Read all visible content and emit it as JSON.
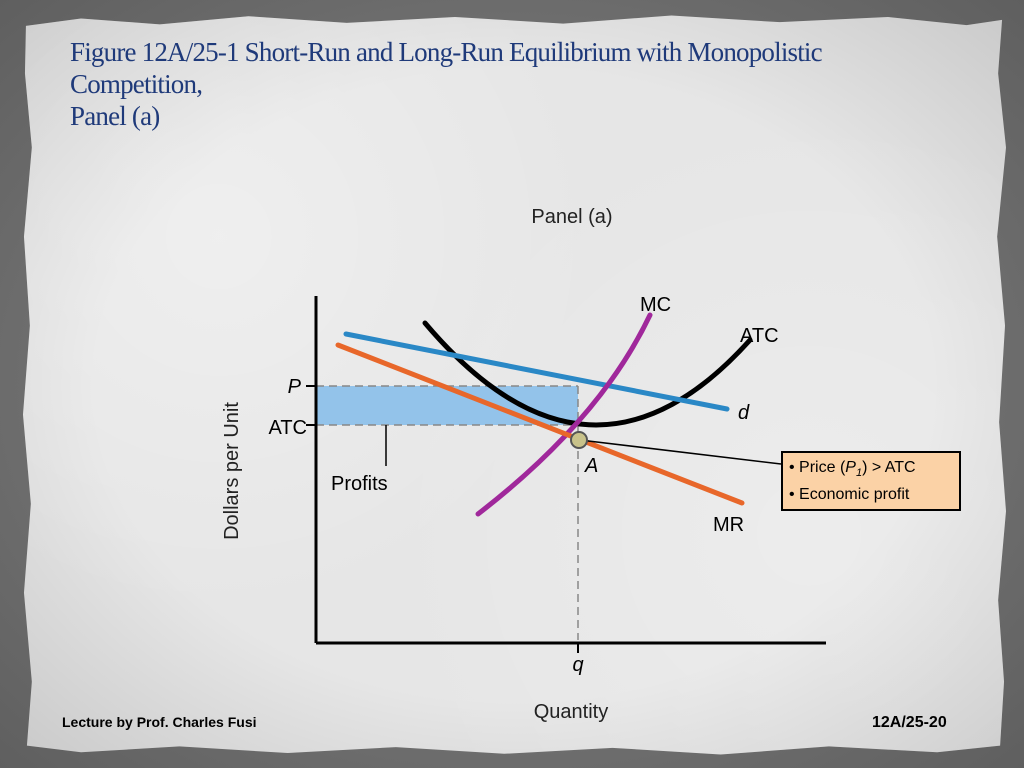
{
  "title_lines": [
    "Figure 12A/25-1  Short-Run and Long-Run Equilibrium with Monopolistic",
    "Competition,",
    "Panel (a)"
  ],
  "footer": {
    "lecturer": "Lecture by Prof. Charles Fusi",
    "slide_number": "12A/25-20"
  },
  "chart_data": {
    "type": "line",
    "title": "Panel (a)",
    "xlabel": "Quantity",
    "ylabel": "Dollars per Unit",
    "x_ticks": [
      "q"
    ],
    "y_ticks": [
      "P",
      "ATC"
    ],
    "series": [
      {
        "name": "MC",
        "color": "#a0289b"
      },
      {
        "name": "ATC",
        "color": "#000000"
      },
      {
        "name": "d",
        "color": "#2a88c6"
      },
      {
        "name": "MR",
        "color": "#e8672a"
      }
    ],
    "shaded_region": {
      "label": "Profits",
      "color": "#93c3ea"
    },
    "point_label": "A",
    "annotation": {
      "lines": [
        "• Price (P",
        "1",
        ") > ATC",
        "• Economic profit"
      ],
      "background": "#fbd2a6"
    }
  }
}
